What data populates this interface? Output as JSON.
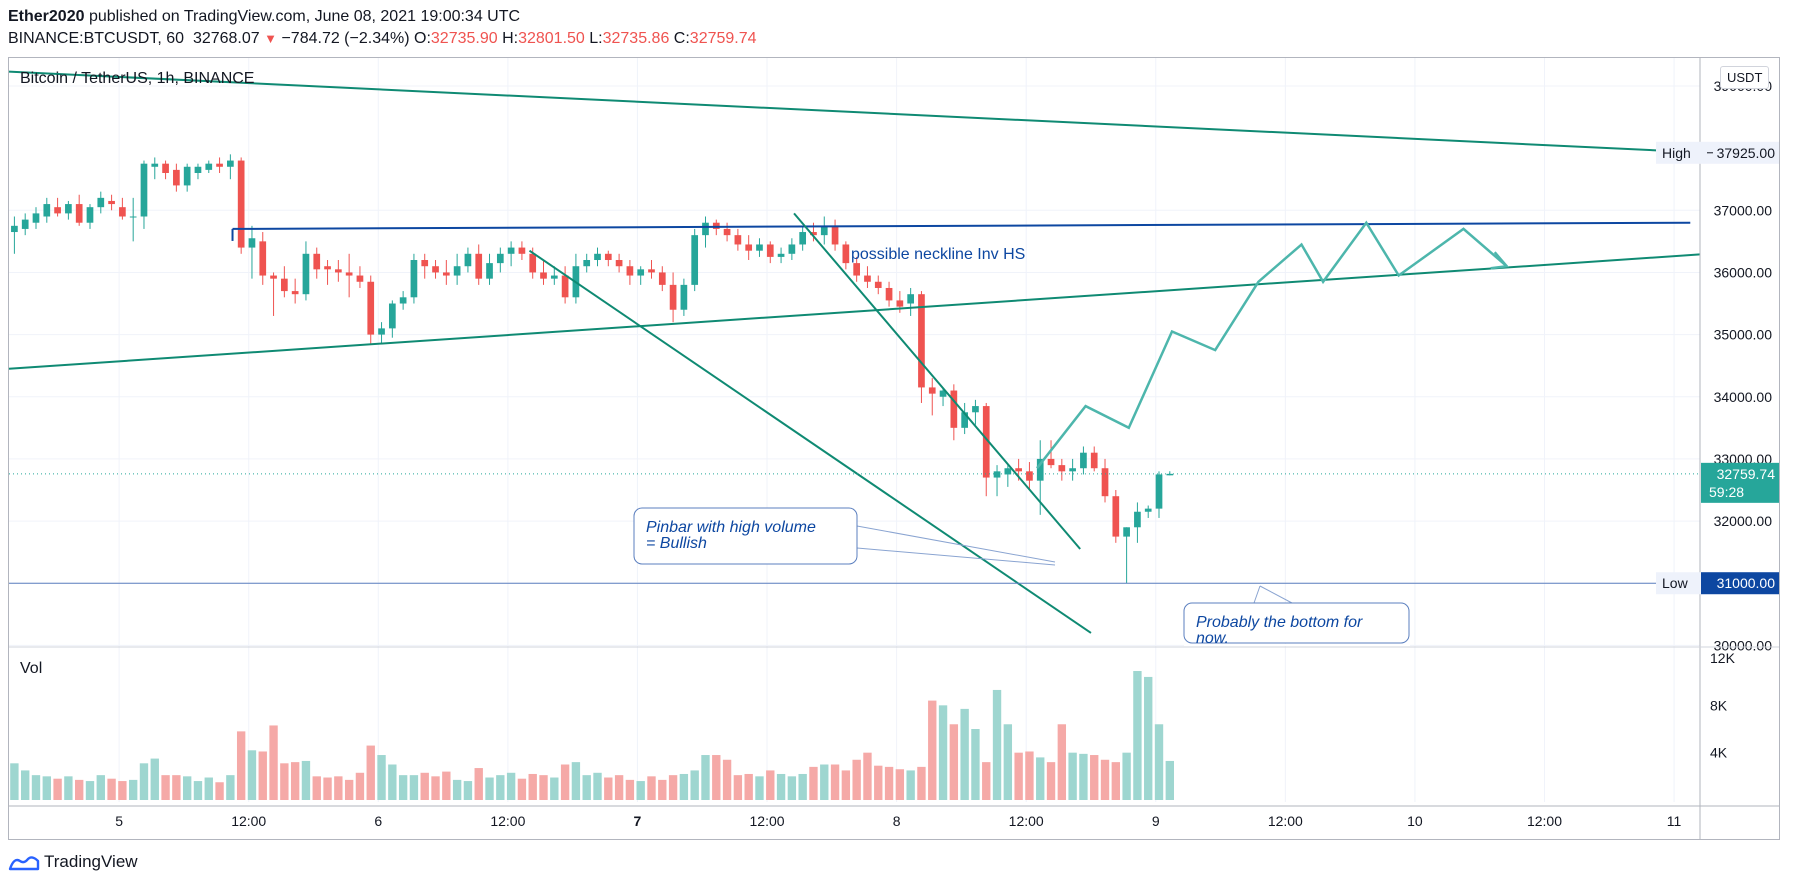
{
  "header": {
    "author": "Ether2020",
    "published_text": "published on TradingView.com, June 08, 2021 19:00:34 UTC",
    "symbol_interval": "BINANCE:BTCUSDT, 60",
    "last": "32768.07",
    "change": "−784.72 (−2.34%)",
    "o_label": "O:",
    "o_value": "32735.90",
    "h_label": "H:",
    "h_value": "32801.50",
    "l_label": "L:",
    "l_value": "32735.86",
    "c_label": "C:",
    "c_value": "32759.74"
  },
  "symbol_title": "Bitcoin / TetherUS, 1h, BINANCE",
  "currency_label": "USDT",
  "footer": {
    "brand": "TradingView"
  },
  "colors": {
    "up": "#26a69a",
    "down": "#ef5350",
    "trend": "#0f8a73",
    "neckline": "#0d47a1",
    "projection": "#4db6ac",
    "annotation": "#0d47a1"
  },
  "chart_data": {
    "type": "candlestick",
    "title": "Bitcoin / TetherUS, 1h, BINANCE",
    "price_axis": {
      "ticks": [
        30000,
        31000,
        32000,
        33000,
        34000,
        35000,
        36000,
        37000,
        39000
      ],
      "tick_labels": [
        "30000.00",
        "31000.00",
        "32000.00",
        "33000.00",
        "34000.00",
        "35000.00",
        "36000.00",
        "37000.00",
        "39000.00"
      ],
      "visible_range": [
        29990,
        39450
      ]
    },
    "volume_axis": {
      "ticks": [
        4000,
        8000,
        12000
      ],
      "tick_labels": [
        "4K",
        "8K",
        "12K"
      ],
      "range": [
        0,
        12000
      ]
    },
    "time_axis": {
      "ticks": [
        {
          "hour": 24,
          "label": "5"
        },
        {
          "hour": 36,
          "label": "12:00"
        },
        {
          "hour": 48,
          "label": "6"
        },
        {
          "hour": 60,
          "label": "12:00"
        },
        {
          "hour": 72,
          "label": "7"
        },
        {
          "hour": 84,
          "label": "12:00"
        },
        {
          "hour": 96,
          "label": "8"
        },
        {
          "hour": 108,
          "label": "12:00"
        },
        {
          "hour": 120,
          "label": "9"
        },
        {
          "hour": 132,
          "label": "12:00"
        },
        {
          "hour": 144,
          "label": "10"
        },
        {
          "hour": 156,
          "label": "12:00"
        },
        {
          "hour": 168,
          "label": "11"
        }
      ],
      "hour_range": [
        13.8,
        170.4
      ]
    },
    "price_labels": [
      {
        "label": "High",
        "value": 37925,
        "text": "37925.00"
      },
      {
        "label": "Low",
        "value": 31000,
        "text": "31000.00"
      }
    ],
    "current_price": {
      "value": 32759.74,
      "text": "32759.74",
      "countdown": "59:28"
    },
    "horizontal_line": {
      "value": 31000,
      "text": "31000.00"
    },
    "candles": [
      {
        "o": 36650,
        "h": 36900,
        "l": 36300,
        "c": 36750
      },
      {
        "o": 36700,
        "h": 36950,
        "l": 36600,
        "c": 36850
      },
      {
        "o": 36800,
        "h": 37050,
        "l": 36700,
        "c": 36950
      },
      {
        "o": 36900,
        "h": 37200,
        "l": 36800,
        "c": 37100
      },
      {
        "o": 37050,
        "h": 37200,
        "l": 36900,
        "c": 36950
      },
      {
        "o": 36950,
        "h": 37150,
        "l": 36850,
        "c": 37100
      },
      {
        "o": 37100,
        "h": 37250,
        "l": 36750,
        "c": 36800
      },
      {
        "o": 36800,
        "h": 37100,
        "l": 36700,
        "c": 37050
      },
      {
        "o": 37050,
        "h": 37300,
        "l": 36950,
        "c": 37200
      },
      {
        "o": 37150,
        "h": 37250,
        "l": 37000,
        "c": 37100
      },
      {
        "o": 37050,
        "h": 37200,
        "l": 36850,
        "c": 36900
      },
      {
        "o": 36900,
        "h": 37200,
        "l": 36500,
        "c": 36900
      },
      {
        "o": 36900,
        "h": 37800,
        "l": 36700,
        "c": 37750
      },
      {
        "o": 37700,
        "h": 37850,
        "l": 37500,
        "c": 37750
      },
      {
        "o": 37750,
        "h": 37800,
        "l": 37500,
        "c": 37600
      },
      {
        "o": 37650,
        "h": 37750,
        "l": 37300,
        "c": 37400
      },
      {
        "o": 37400,
        "h": 37750,
        "l": 37300,
        "c": 37700
      },
      {
        "o": 37600,
        "h": 37750,
        "l": 37500,
        "c": 37700
      },
      {
        "o": 37650,
        "h": 37800,
        "l": 37600,
        "c": 37750
      },
      {
        "o": 37750,
        "h": 37850,
        "l": 37600,
        "c": 37700
      },
      {
        "o": 37700,
        "h": 37900,
        "l": 37500,
        "c": 37800
      },
      {
        "o": 37800,
        "h": 37850,
        "l": 36300,
        "c": 36400
      },
      {
        "o": 36400,
        "h": 36750,
        "l": 35900,
        "c": 36550
      },
      {
        "o": 36500,
        "h": 36650,
        "l": 35800,
        "c": 35950
      },
      {
        "o": 35950,
        "h": 36000,
        "l": 35300,
        "c": 35900
      },
      {
        "o": 35900,
        "h": 36100,
        "l": 35600,
        "c": 35700
      },
      {
        "o": 35700,
        "h": 35900,
        "l": 35500,
        "c": 35650
      },
      {
        "o": 35650,
        "h": 36500,
        "l": 35550,
        "c": 36300
      },
      {
        "o": 36300,
        "h": 36400,
        "l": 35900,
        "c": 36050
      },
      {
        "o": 36100,
        "h": 36200,
        "l": 35800,
        "c": 36050
      },
      {
        "o": 36050,
        "h": 36200,
        "l": 35850,
        "c": 36000
      },
      {
        "o": 36000,
        "h": 36300,
        "l": 35600,
        "c": 35950
      },
      {
        "o": 35950,
        "h": 36100,
        "l": 35750,
        "c": 35850
      },
      {
        "o": 35850,
        "h": 35950,
        "l": 34850,
        "c": 35000
      },
      {
        "o": 35000,
        "h": 35200,
        "l": 34850,
        "c": 35100
      },
      {
        "o": 35100,
        "h": 35550,
        "l": 34950,
        "c": 35500
      },
      {
        "o": 35500,
        "h": 35700,
        "l": 35400,
        "c": 35600
      },
      {
        "o": 35600,
        "h": 36300,
        "l": 35500,
        "c": 36200
      },
      {
        "o": 36200,
        "h": 36300,
        "l": 35900,
        "c": 36100
      },
      {
        "o": 36100,
        "h": 36200,
        "l": 35900,
        "c": 36000
      },
      {
        "o": 36000,
        "h": 36200,
        "l": 35800,
        "c": 35950
      },
      {
        "o": 35950,
        "h": 36300,
        "l": 35800,
        "c": 36100
      },
      {
        "o": 36100,
        "h": 36400,
        "l": 36000,
        "c": 36300
      },
      {
        "o": 36300,
        "h": 36450,
        "l": 35800,
        "c": 35900
      },
      {
        "o": 35900,
        "h": 36300,
        "l": 35800,
        "c": 36150
      },
      {
        "o": 36150,
        "h": 36400,
        "l": 36000,
        "c": 36300
      },
      {
        "o": 36300,
        "h": 36500,
        "l": 36100,
        "c": 36400
      },
      {
        "o": 36400,
        "h": 36500,
        "l": 36200,
        "c": 36300
      },
      {
        "o": 36300,
        "h": 36400,
        "l": 35900,
        "c": 36000
      },
      {
        "o": 36000,
        "h": 36200,
        "l": 35800,
        "c": 35900
      },
      {
        "o": 35900,
        "h": 36100,
        "l": 35800,
        "c": 35950
      },
      {
        "o": 35950,
        "h": 36100,
        "l": 35500,
        "c": 35600
      },
      {
        "o": 35600,
        "h": 36300,
        "l": 35500,
        "c": 36100
      },
      {
        "o": 36100,
        "h": 36300,
        "l": 36000,
        "c": 36200
      },
      {
        "o": 36200,
        "h": 36400,
        "l": 36100,
        "c": 36300
      },
      {
        "o": 36300,
        "h": 36350,
        "l": 36100,
        "c": 36200
      },
      {
        "o": 36200,
        "h": 36300,
        "l": 36000,
        "c": 36100
      },
      {
        "o": 36100,
        "h": 36200,
        "l": 35800,
        "c": 35950
      },
      {
        "o": 35950,
        "h": 36100,
        "l": 35800,
        "c": 36050
      },
      {
        "o": 36050,
        "h": 36200,
        "l": 35900,
        "c": 36000
      },
      {
        "o": 36000,
        "h": 36100,
        "l": 35700,
        "c": 35800
      },
      {
        "o": 35800,
        "h": 36000,
        "l": 35200,
        "c": 35400
      },
      {
        "o": 35400,
        "h": 35900,
        "l": 35300,
        "c": 35800
      },
      {
        "o": 35800,
        "h": 36700,
        "l": 35700,
        "c": 36600
      },
      {
        "o": 36600,
        "h": 36900,
        "l": 36400,
        "c": 36800
      },
      {
        "o": 36800,
        "h": 36850,
        "l": 36600,
        "c": 36700
      },
      {
        "o": 36700,
        "h": 36800,
        "l": 36500,
        "c": 36600
      },
      {
        "o": 36600,
        "h": 36700,
        "l": 36350,
        "c": 36450
      },
      {
        "o": 36450,
        "h": 36600,
        "l": 36200,
        "c": 36350
      },
      {
        "o": 36350,
        "h": 36550,
        "l": 36250,
        "c": 36450
      },
      {
        "o": 36450,
        "h": 36500,
        "l": 36150,
        "c": 36250
      },
      {
        "o": 36250,
        "h": 36400,
        "l": 36150,
        "c": 36300
      },
      {
        "o": 36300,
        "h": 36550,
        "l": 36200,
        "c": 36450
      },
      {
        "o": 36450,
        "h": 36750,
        "l": 36350,
        "c": 36650
      },
      {
        "o": 36650,
        "h": 36800,
        "l": 36500,
        "c": 36600
      },
      {
        "o": 36600,
        "h": 36900,
        "l": 36450,
        "c": 36750
      },
      {
        "o": 36750,
        "h": 36850,
        "l": 36350,
        "c": 36450
      },
      {
        "o": 36450,
        "h": 36500,
        "l": 36050,
        "c": 36150
      },
      {
        "o": 36150,
        "h": 36250,
        "l": 35850,
        "c": 35950
      },
      {
        "o": 35950,
        "h": 36100,
        "l": 35750,
        "c": 35850
      },
      {
        "o": 35850,
        "h": 35950,
        "l": 35650,
        "c": 35750
      },
      {
        "o": 35750,
        "h": 35850,
        "l": 35450,
        "c": 35550
      },
      {
        "o": 35550,
        "h": 35700,
        "l": 35350,
        "c": 35450
      },
      {
        "o": 35500,
        "h": 35750,
        "l": 35300,
        "c": 35650
      },
      {
        "o": 35650,
        "h": 35700,
        "l": 33900,
        "c": 34150
      },
      {
        "o": 34150,
        "h": 34300,
        "l": 33700,
        "c": 34050
      },
      {
        "o": 34000,
        "h": 34150,
        "l": 33850,
        "c": 34100
      },
      {
        "o": 34100,
        "h": 34200,
        "l": 33300,
        "c": 33500
      },
      {
        "o": 33500,
        "h": 33900,
        "l": 33400,
        "c": 33750
      },
      {
        "o": 33750,
        "h": 33950,
        "l": 33550,
        "c": 33850
      },
      {
        "o": 33850,
        "h": 33900,
        "l": 32400,
        "c": 32700
      },
      {
        "o": 32700,
        "h": 32900,
        "l": 32400,
        "c": 32800
      },
      {
        "o": 32750,
        "h": 32900,
        "l": 32550,
        "c": 32850
      },
      {
        "o": 32850,
        "h": 33000,
        "l": 32650,
        "c": 32800
      },
      {
        "o": 32800,
        "h": 32950,
        "l": 32500,
        "c": 32650
      },
      {
        "o": 32650,
        "h": 33300,
        "l": 32100,
        "c": 33000
      },
      {
        "o": 33000,
        "h": 33300,
        "l": 32850,
        "c": 32900
      },
      {
        "o": 32900,
        "h": 33000,
        "l": 32650,
        "c": 32800
      },
      {
        "o": 32800,
        "h": 33000,
        "l": 32650,
        "c": 32850
      },
      {
        "o": 32850,
        "h": 33200,
        "l": 32750,
        "c": 33100
      },
      {
        "o": 33100,
        "h": 33200,
        "l": 32800,
        "c": 32850
      },
      {
        "o": 32850,
        "h": 33000,
        "l": 32300,
        "c": 32400
      },
      {
        "o": 32400,
        "h": 32500,
        "l": 31650,
        "c": 31750
      },
      {
        "o": 31750,
        "h": 31900,
        "l": 31000,
        "c": 31900
      },
      {
        "o": 31900,
        "h": 32300,
        "l": 31650,
        "c": 32150
      },
      {
        "o": 32150,
        "h": 32250,
        "l": 32050,
        "c": 32200
      },
      {
        "o": 32200,
        "h": 32800,
        "l": 32050,
        "c": 32750
      },
      {
        "o": 32735.9,
        "h": 32801.5,
        "l": 32735.86,
        "c": 32759.74
      }
    ],
    "volume": [
      3100,
      2500,
      2100,
      2000,
      1800,
      2000,
      1700,
      1600,
      2100,
      1800,
      1600,
      1700,
      3100,
      3500,
      2100,
      2100,
      2000,
      1600,
      1900,
      1500,
      2100,
      5800,
      4200,
      4100,
      6300,
      3100,
      3200,
      3300,
      2000,
      1900,
      2000,
      1700,
      2300,
      4600,
      3800,
      3000,
      2100,
      2100,
      2300,
      2000,
      2400,
      1700,
      1600,
      2700,
      1900,
      2100,
      2300,
      1800,
      2200,
      2100,
      1900,
      3000,
      3200,
      2100,
      2300,
      1900,
      2100,
      1700,
      1600,
      2000,
      1700,
      2100,
      2200,
      2500,
      3800,
      3800,
      3400,
      2100,
      2200,
      2000,
      2500,
      2200,
      2000,
      2200,
      2800,
      3000,
      3000,
      2500,
      3400,
      4000,
      2900,
      2800,
      2600,
      2500,
      2800,
      8400,
      8000,
      6400,
      7700,
      6000,
      3200,
      9300,
      6400,
      4000,
      4100,
      3600,
      3200,
      6400,
      4000,
      3900,
      3800,
      3400,
      3200,
      4000,
      10900,
      10400,
      6400,
      3300,
      4700,
      200
    ]
  },
  "drawings": {
    "descending_resistance": [
      [
        13.8,
        39230
      ],
      [
        170.4,
        37930
      ]
    ],
    "ascending_support": [
      [
        13.8,
        34450
      ],
      [
        170.4,
        36290
      ]
    ],
    "neckline": [
      [
        34.5,
        36700
      ],
      [
        169.5,
        36800
      ]
    ],
    "falling_wedge_upper": [
      [
        86.5,
        36950
      ],
      [
        113,
        31550
      ]
    ],
    "falling_wedge_lower": [
      [
        62,
        36350
      ],
      [
        114,
        30200
      ]
    ],
    "projection_path": [
      [
        109,
        32850
      ],
      [
        113.5,
        33850
      ],
      [
        117.5,
        33500
      ],
      [
        121.5,
        35050
      ],
      [
        125.5,
        34750
      ],
      [
        129.5,
        35850
      ],
      [
        133.5,
        36450
      ],
      [
        135.5,
        35850
      ],
      [
        139.5,
        36800
      ],
      [
        142.5,
        35950
      ],
      [
        148.5,
        36700
      ],
      [
        152.5,
        36100
      ]
    ],
    "neckline_label": "possible neckline Inv HS",
    "callouts": [
      {
        "lines": [
          "Pinbar with high volume",
          "= Bullish"
        ]
      },
      {
        "lines": [
          "Probably the bottom for",
          "now."
        ]
      }
    ]
  }
}
